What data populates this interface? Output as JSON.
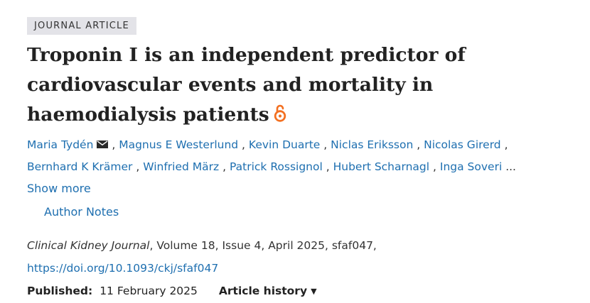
{
  "badge": "JOURNAL ARTICLE",
  "title": "Troponin I is an independent predictor of cardiovascular events and mortality in haemodialysis patients",
  "icons": {
    "open_access": "open-access-lock-icon",
    "mail": "envelope-icon",
    "caret": "caret-down-icon"
  },
  "colors": {
    "link": "#1e6fb0",
    "open_access": "#f37021",
    "badge_bg": "#e3e3e8"
  },
  "authors_line1": [
    "Maria Tydén",
    "Magnus E Westerlund",
    "Kevin Duarte",
    "Niclas Eriksson",
    "Nicolas Girerd"
  ],
  "authors_line2": [
    "Bernhard K Krämer",
    "Winfried März",
    "Patrick Rossignol",
    "Hubert Scharnagl",
    "Inga Soveri"
  ],
  "separator": ",",
  "ellipsis": "...",
  "show_more": "Show more",
  "author_notes": "Author Notes",
  "citation": {
    "journal": "Clinical Kidney Journal",
    "details": ", Volume 18, Issue 4, April 2025, sfaf047,",
    "doi": "https://doi.org/10.1093/ckj/sfaf047"
  },
  "published": {
    "label": "Published:",
    "date": "11 February 2025"
  },
  "article_history": "Article history",
  "caret_glyph": "▼"
}
